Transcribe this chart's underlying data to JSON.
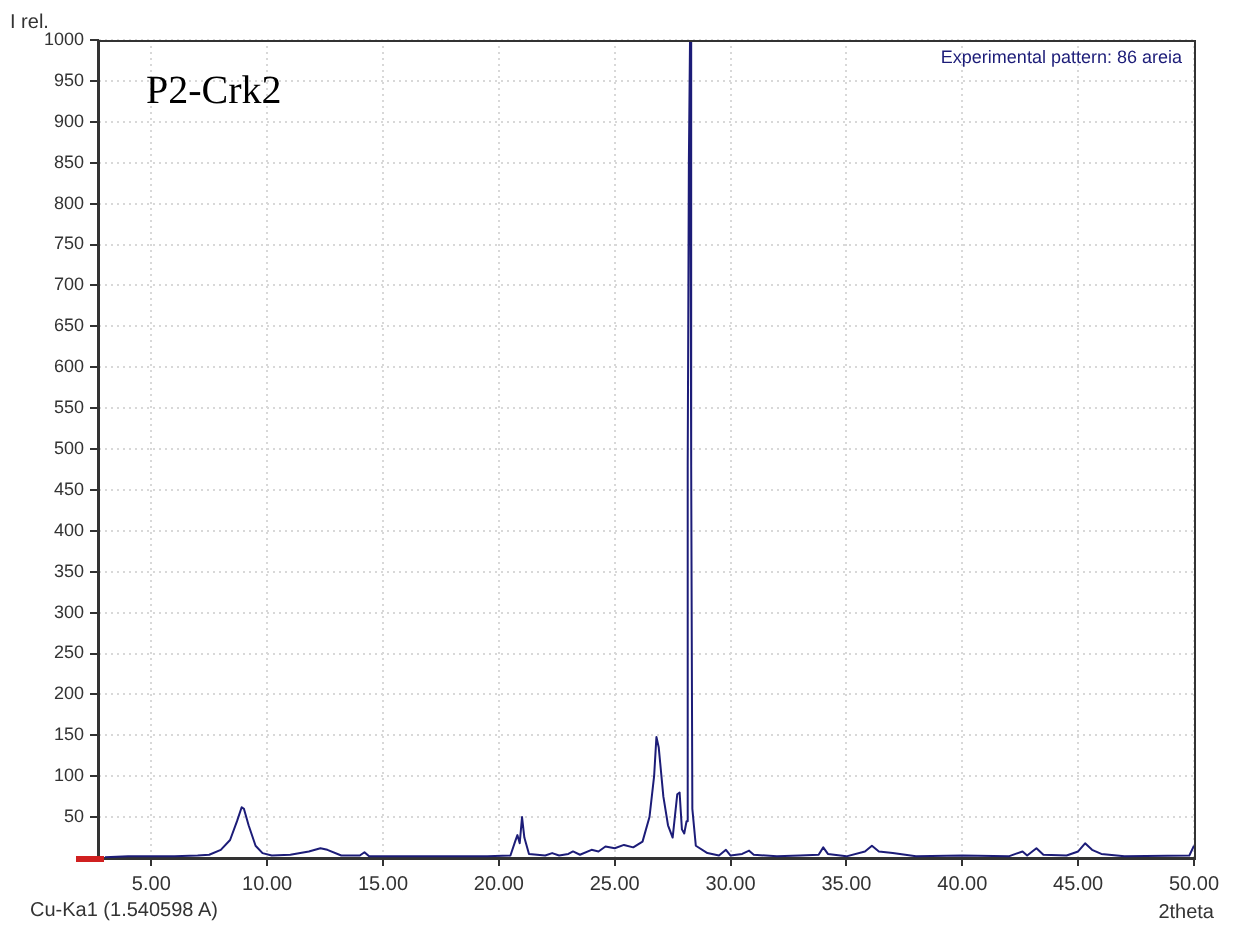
{
  "chart_data": {
    "type": "line",
    "xlabel": "2theta",
    "ylabel": "I rel.",
    "annotations": [
      "P2-Crk2",
      "Experimental pattern: 86 areia",
      "Cu-Ka1 (1.540598 A)"
    ],
    "xlim": [
      2.7,
      50
    ],
    "ylim": [
      0,
      1000
    ],
    "xticks": [
      {
        "value": 5,
        "label": "5.00"
      },
      {
        "value": 10,
        "label": "10.00"
      },
      {
        "value": 15,
        "label": "15.00"
      },
      {
        "value": 20,
        "label": "20.00"
      },
      {
        "value": 25,
        "label": "25.00"
      },
      {
        "value": 30,
        "label": "30.00"
      },
      {
        "value": 35,
        "label": "35.00"
      },
      {
        "value": 40,
        "label": "40.00"
      },
      {
        "value": 45,
        "label": "45.00"
      },
      {
        "value": 50,
        "label": "50.00"
      }
    ],
    "yticks": [
      50,
      100,
      150,
      200,
      250,
      300,
      350,
      400,
      450,
      500,
      550,
      600,
      650,
      700,
      750,
      800,
      850,
      900,
      950,
      1000
    ],
    "grid": true,
    "marker": "none",
    "line_style": "solid",
    "series": [
      {
        "color": "#1c1c78",
        "x": [
          3,
          4,
          5,
          6,
          7,
          7.5,
          8,
          8.4,
          8.7,
          8.9,
          9.0,
          9.2,
          9.5,
          9.8,
          10.2,
          11,
          11.8,
          12.3,
          12.6,
          13.2,
          14,
          14.2,
          14.4,
          16,
          18,
          19.5,
          20.5,
          20.7,
          20.8,
          20.9,
          21.0,
          21.1,
          21.3,
          22,
          22.3,
          22.6,
          23,
          23.2,
          23.5,
          24,
          24.3,
          24.6,
          25,
          25.4,
          25.8,
          26.2,
          26.5,
          26.7,
          26.8,
          26.9,
          27.1,
          27.3,
          27.5,
          27.7,
          27.8,
          27.9,
          28.0,
          28.1,
          28.15,
          28.2,
          28.25,
          28.3,
          28.35,
          28.5,
          29,
          29.5,
          29.8,
          30,
          30.5,
          30.8,
          31,
          32,
          33,
          33.8,
          34.0,
          34.2,
          35,
          35.8,
          36.1,
          36.4,
          37,
          38,
          40,
          42,
          42.6,
          42.8,
          43.2,
          43.5,
          44.5,
          45.0,
          45.3,
          45.6,
          46,
          47,
          49.8,
          50
        ],
        "values": [
          1,
          2,
          2,
          2,
          3,
          4,
          10,
          22,
          45,
          62,
          60,
          40,
          15,
          6,
          3,
          4,
          8,
          12,
          10,
          3,
          3,
          7,
          2,
          2,
          2,
          2,
          3,
          20,
          28,
          18,
          50,
          25,
          5,
          3,
          6,
          3,
          5,
          8,
          4,
          10,
          8,
          14,
          12,
          16,
          13,
          20,
          50,
          100,
          148,
          135,
          75,
          40,
          25,
          78,
          80,
          35,
          30,
          45,
          480,
          850,
          1000,
          480,
          60,
          15,
          6,
          3,
          10,
          3,
          5,
          9,
          4,
          2,
          3,
          4,
          13,
          5,
          2,
          8,
          15,
          8,
          6,
          2,
          3,
          2,
          8,
          3,
          12,
          4,
          3,
          8,
          18,
          10,
          5,
          2,
          3,
          15
        ]
      }
    ]
  }
}
